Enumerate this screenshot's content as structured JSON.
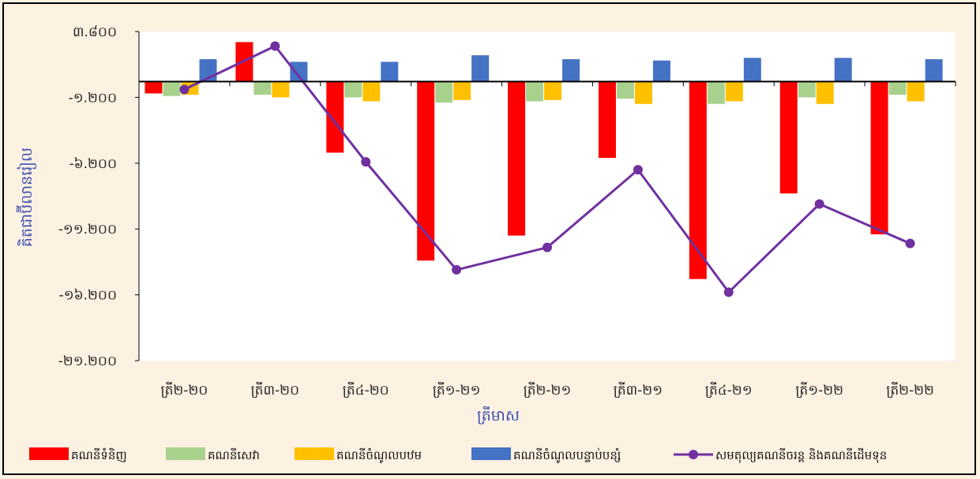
{
  "chart_data": {
    "type": "bar",
    "categories": [
      "ត្រី២-២០",
      "ត្រី៣-២០",
      "ត្រី៤-២០",
      "ត្រី១-២១",
      "ត្រី២-២១",
      "ត្រី៣-២១",
      "ត្រី៤-២១",
      "ត្រី១-២២",
      "ត្រី២-២២"
    ],
    "series": [
      {
        "name": "គណនីទំនិញ",
        "kind": "bar",
        "color": "#ff0000",
        "values": [
          -900,
          3000,
          -5400,
          -13600,
          -11700,
          -5800,
          -15000,
          -8500,
          -11600
        ]
      },
      {
        "name": "គណនីសេវា",
        "kind": "bar",
        "color": "#a9d18e",
        "values": [
          -1100,
          -1000,
          -1200,
          -1600,
          -1500,
          -1300,
          -1700,
          -1200,
          -1000
        ]
      },
      {
        "name": "គណនីចំណូលបឋម",
        "kind": "bar",
        "color": "#ffc000",
        "values": [
          -1000,
          -1200,
          -1500,
          -1400,
          -1400,
          -1700,
          -1500,
          -1700,
          -1500
        ]
      },
      {
        "name": "គណនីចំណូលបន្ទាប់បន្សំ",
        "kind": "bar",
        "color": "#4472c4",
        "values": [
          1700,
          1500,
          1500,
          2000,
          1700,
          1600,
          1800,
          1800,
          1700
        ]
      },
      {
        "name": "សមតុល្យគណនីចរន្ត និងគណនីដើមទុន",
        "kind": "line",
        "color": "#7030a0",
        "values": [
          -600,
          2700,
          -6100,
          -14300,
          -12600,
          -6700,
          -16000,
          -9300,
          -12300
        ]
      }
    ],
    "ylabel": "គិតជាប៊ីលានរៀល",
    "xlabel": "ត្រីមាស",
    "ylim": [
      -21200,
      3800
    ],
    "yticks": [
      3800,
      -1200,
      -6200,
      -11200,
      -16200,
      -21200
    ],
    "ytick_labels": [
      "៣.៨០០",
      "-១.២០០",
      "-៦.២០០",
      "-១១.២០០",
      "-១៦.២០០",
      "-២១.២០០"
    ],
    "grid": false,
    "legend_position": "bottom"
  }
}
